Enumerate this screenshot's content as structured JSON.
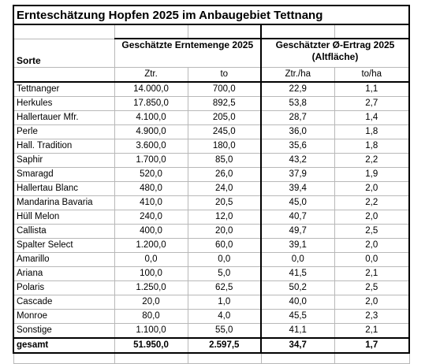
{
  "title": "Ernteschätzung Hopfen 2025 im Anbaugebiet Tettnang",
  "headers": {
    "sorte": "Sorte",
    "erntemenge": "Geschätzte Erntemenge 2025",
    "ertrag": "Geschätzter Ø-Ertrag 2025 (Altfläche)",
    "units": [
      "Ztr.",
      "to",
      "Ztr./ha",
      "to/ha"
    ]
  },
  "rows": [
    {
      "sorte": "Tettnanger",
      "ztr": "14.000,0",
      "to": "700,0",
      "ztr_ha": "22,9",
      "to_ha": "1,1"
    },
    {
      "sorte": "Herkules",
      "ztr": "17.850,0",
      "to": "892,5",
      "ztr_ha": "53,8",
      "to_ha": "2,7"
    },
    {
      "sorte": "Hallertauer Mfr.",
      "ztr": "4.100,0",
      "to": "205,0",
      "ztr_ha": "28,7",
      "to_ha": "1,4"
    },
    {
      "sorte": "Perle",
      "ztr": "4.900,0",
      "to": "245,0",
      "ztr_ha": "36,0",
      "to_ha": "1,8"
    },
    {
      "sorte": "Hall. Tradition",
      "ztr": "3.600,0",
      "to": "180,0",
      "ztr_ha": "35,6",
      "to_ha": "1,8"
    },
    {
      "sorte": "Saphir",
      "ztr": "1.700,0",
      "to": "85,0",
      "ztr_ha": "43,2",
      "to_ha": "2,2"
    },
    {
      "sorte": "Smaragd",
      "ztr": "520,0",
      "to": "26,0",
      "ztr_ha": "37,9",
      "to_ha": "1,9"
    },
    {
      "sorte": "Hallertau Blanc",
      "ztr": "480,0",
      "to": "24,0",
      "ztr_ha": "39,4",
      "to_ha": "2,0"
    },
    {
      "sorte": "Mandarina Bavaria",
      "ztr": "410,0",
      "to": "20,5",
      "ztr_ha": "45,0",
      "to_ha": "2,2"
    },
    {
      "sorte": "Hüll Melon",
      "ztr": "240,0",
      "to": "12,0",
      "ztr_ha": "40,7",
      "to_ha": "2,0"
    },
    {
      "sorte": "Callista",
      "ztr": "400,0",
      "to": "20,0",
      "ztr_ha": "49,7",
      "to_ha": "2,5"
    },
    {
      "sorte": "Spalter Select",
      "ztr": "1.200,0",
      "to": "60,0",
      "ztr_ha": "39,1",
      "to_ha": "2,0"
    },
    {
      "sorte": "Amarillo",
      "ztr": "0,0",
      "to": "0,0",
      "ztr_ha": "0,0",
      "to_ha": "0,0"
    },
    {
      "sorte": "Ariana",
      "ztr": "100,0",
      "to": "5,0",
      "ztr_ha": "41,5",
      "to_ha": "2,1"
    },
    {
      "sorte": "Polaris",
      "ztr": "1.250,0",
      "to": "62,5",
      "ztr_ha": "50,2",
      "to_ha": "2,5"
    },
    {
      "sorte": "Cascade",
      "ztr": "20,0",
      "to": "1,0",
      "ztr_ha": "40,0",
      "to_ha": "2,0"
    },
    {
      "sorte": "Monroe",
      "ztr": "80,0",
      "to": "4,0",
      "ztr_ha": "45,5",
      "to_ha": "2,3"
    },
    {
      "sorte": "Sonstige",
      "ztr": "1.100,0",
      "to": "55,0",
      "ztr_ha": "41,1",
      "to_ha": "2,1"
    }
  ],
  "total": {
    "sorte": "gesamt",
    "ztr": "51.950,0",
    "to": "2.597,5",
    "ztr_ha": "34,7",
    "to_ha": "1,7"
  }
}
